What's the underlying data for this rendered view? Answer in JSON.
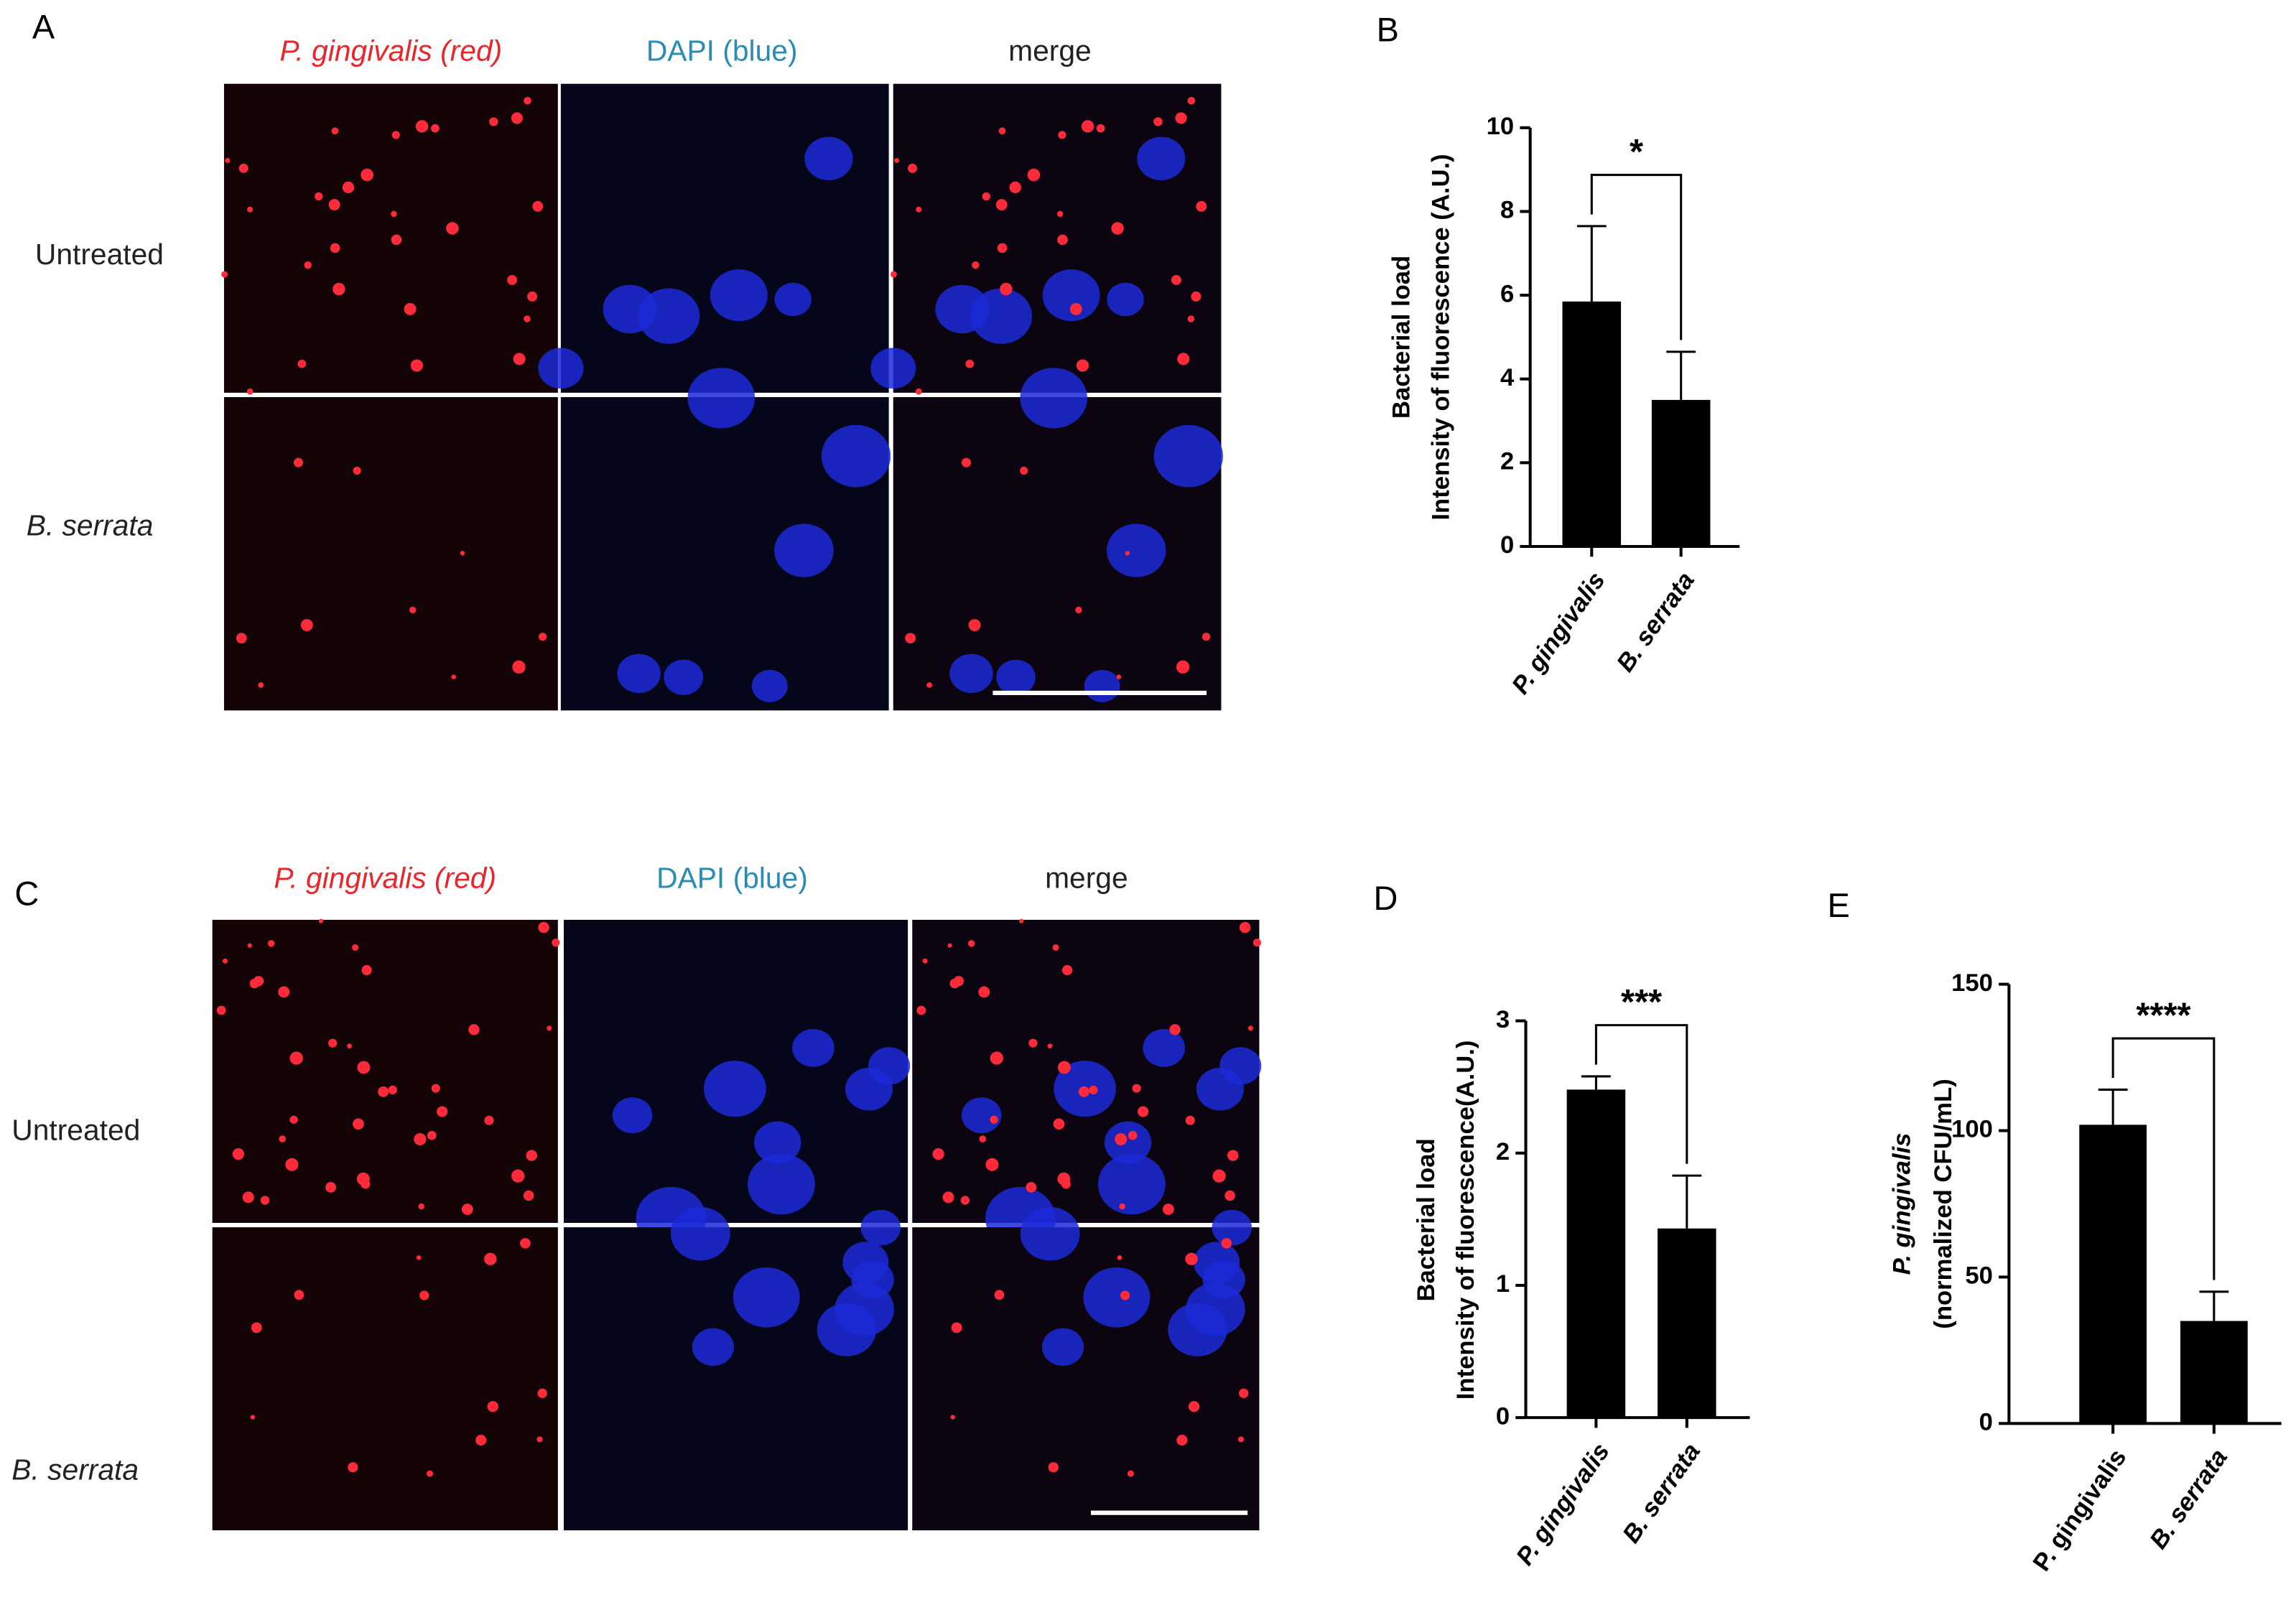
{
  "microscopy": [
    {
      "letter": "A",
      "headers": [
        "P. gingivalis (red)",
        "DAPI (blue)",
        "merge"
      ],
      "rows": [
        "Untreated",
        "B. serrata"
      ]
    },
    {
      "letter": "C",
      "headers": [
        "P. gingivalis (red)",
        "DAPI (blue)",
        "merge"
      ],
      "rows": [
        "Untreated",
        "B. serrata"
      ]
    }
  ],
  "chart_data": [
    {
      "type": "bar",
      "letter": "B",
      "ylabel": [
        "Bacterial load",
        "Intensity of fluorescence (A.U.)"
      ],
      "categories": [
        "P. gingivalis",
        "B. serrata"
      ],
      "values": [
        5.85,
        3.5
      ],
      "errors": [
        1.8,
        1.15
      ],
      "color": "#000000",
      "ylim": [
        0,
        10
      ],
      "yticks": [
        0,
        2,
        4,
        6,
        8,
        10
      ],
      "significance": "*"
    },
    {
      "type": "bar",
      "letter": "D",
      "ylabel": [
        "Bacterial load",
        "Intensity of fluorescence(A.U.)"
      ],
      "categories": [
        "P. gingivalis",
        "B. serrata"
      ],
      "values": [
        2.48,
        1.43
      ],
      "errors": [
        0.1,
        0.4
      ],
      "color": "#000000",
      "ylim": [
        0,
        3
      ],
      "yticks": [
        0,
        1,
        2,
        3
      ],
      "significance": "***"
    },
    {
      "type": "bar",
      "letter": "E",
      "ylabel": [
        "P. gingivalis",
        "(normalized CFU/mL)"
      ],
      "categories": [
        "P. gingivalis",
        "B. serrata"
      ],
      "values": [
        102,
        35
      ],
      "errors": [
        12,
        10
      ],
      "color": "#000000",
      "ylim": [
        0,
        150
      ],
      "yticks": [
        0,
        50,
        100,
        150
      ],
      "significance": "****"
    }
  ]
}
